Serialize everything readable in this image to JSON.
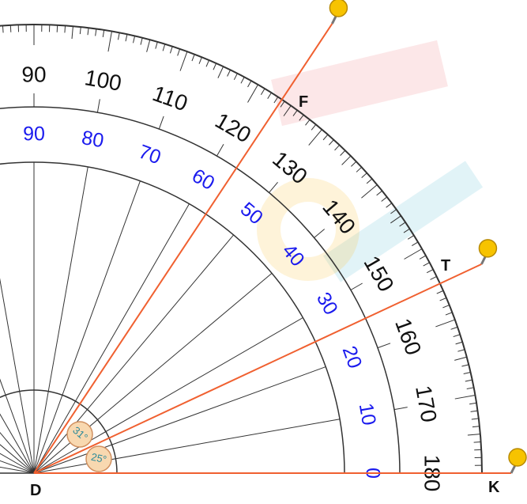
{
  "protractor": {
    "outer_labels": [
      "90",
      "100",
      "110",
      "120",
      "130",
      "140",
      "150",
      "160",
      "170",
      "180"
    ],
    "inner_labels": [
      "90",
      "80",
      "70",
      "60",
      "50",
      "40",
      "30",
      "20",
      "10",
      "0"
    ]
  },
  "points": [
    {
      "label": "F"
    },
    {
      "label": "T"
    },
    {
      "label": "K"
    },
    {
      "label": "D"
    }
  ],
  "angles": [
    {
      "label": "31°"
    },
    {
      "label": "25°"
    }
  ]
}
